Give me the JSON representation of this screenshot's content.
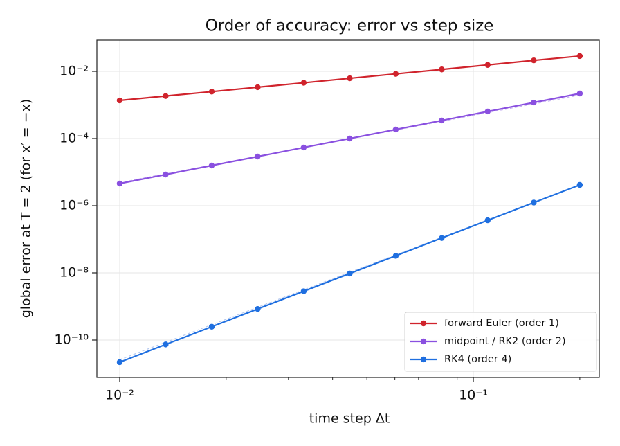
{
  "chart_data": {
    "type": "line",
    "title": "Order of accuracy: error vs step size",
    "xlabel": "time step  Δt",
    "ylabel": "global error at T = 2  (for x′ = −x)",
    "xscale": "log",
    "yscale": "log",
    "grid": true,
    "legend": "lower right",
    "x": [
      0.01,
      0.01349,
      0.01821,
      0.02456,
      0.03314,
      0.04472,
      0.06034,
      0.08141,
      0.1098,
      0.1482,
      0.2
    ],
    "series": [
      {
        "name": "forward Euler (order 1)",
        "color": "#d0232c",
        "values": [
          0.00136,
          0.00184,
          0.00249,
          0.00337,
          0.00456,
          0.0062,
          0.0084,
          0.0114,
          0.0155,
          0.0212,
          0.0285
        ]
      },
      {
        "name": "midpoint / RK2 (order 2)",
        "color": "#8a50e0",
        "values": [
          4.57e-06,
          8.47e-06,
          1.57e-05,
          2.91e-05,
          5.4e-05,
          0.0001,
          0.000186,
          0.000344,
          0.000638,
          0.00118,
          0.00219
        ]
      },
      {
        "name": "RK4 (order 4)",
        "color": "#1f6fe0",
        "values": [
          2.19e-11,
          7.39e-11,
          2.49e-10,
          8.4e-10,
          2.83e-09,
          9.56e-09,
          3.22e-08,
          1.09e-07,
          3.67e-07,
          1.24e-06,
          4.16e-06
        ]
      }
    ],
    "reference_lines": [
      {
        "color": "#c8b4f0",
        "values": [
          4.9e-06,
          8.92e-06,
          1.62e-05,
          2.95e-05,
          5.38e-05,
          9.8e-05,
          0.000178,
          0.000324,
          0.00059,
          0.00107,
          0.00196
        ]
      },
      {
        "color": "#b4c8f0",
        "values": [
          2.6e-11,
          8.61e-11,
          2.85e-10,
          9.44e-10,
          3.13e-09,
          1.04e-08,
          3.43e-08,
          1.14e-07,
          3.77e-07,
          1.25e-06,
          4.16e-06
        ]
      }
    ],
    "xlim": [
      0.00862,
      0.227
    ],
    "ylim": [
      7.7e-12,
      0.0847
    ],
    "xticks": [
      {
        "value": 0.01,
        "label": "10⁻²"
      },
      {
        "value": 0.1,
        "label": "10⁻¹"
      }
    ],
    "xticks_minor": [
      0.02,
      0.03,
      0.04,
      0.05,
      0.06,
      0.07,
      0.08,
      0.09,
      0.2
    ],
    "yticks": [
      {
        "value": 1e-10,
        "label": "10⁻¹⁰"
      },
      {
        "value": 1e-08,
        "label": "10⁻⁸"
      },
      {
        "value": 1e-06,
        "label": "10⁻⁶"
      },
      {
        "value": 0.0001,
        "label": "10⁻⁴"
      },
      {
        "value": 0.01,
        "label": "10⁻²"
      }
    ]
  }
}
